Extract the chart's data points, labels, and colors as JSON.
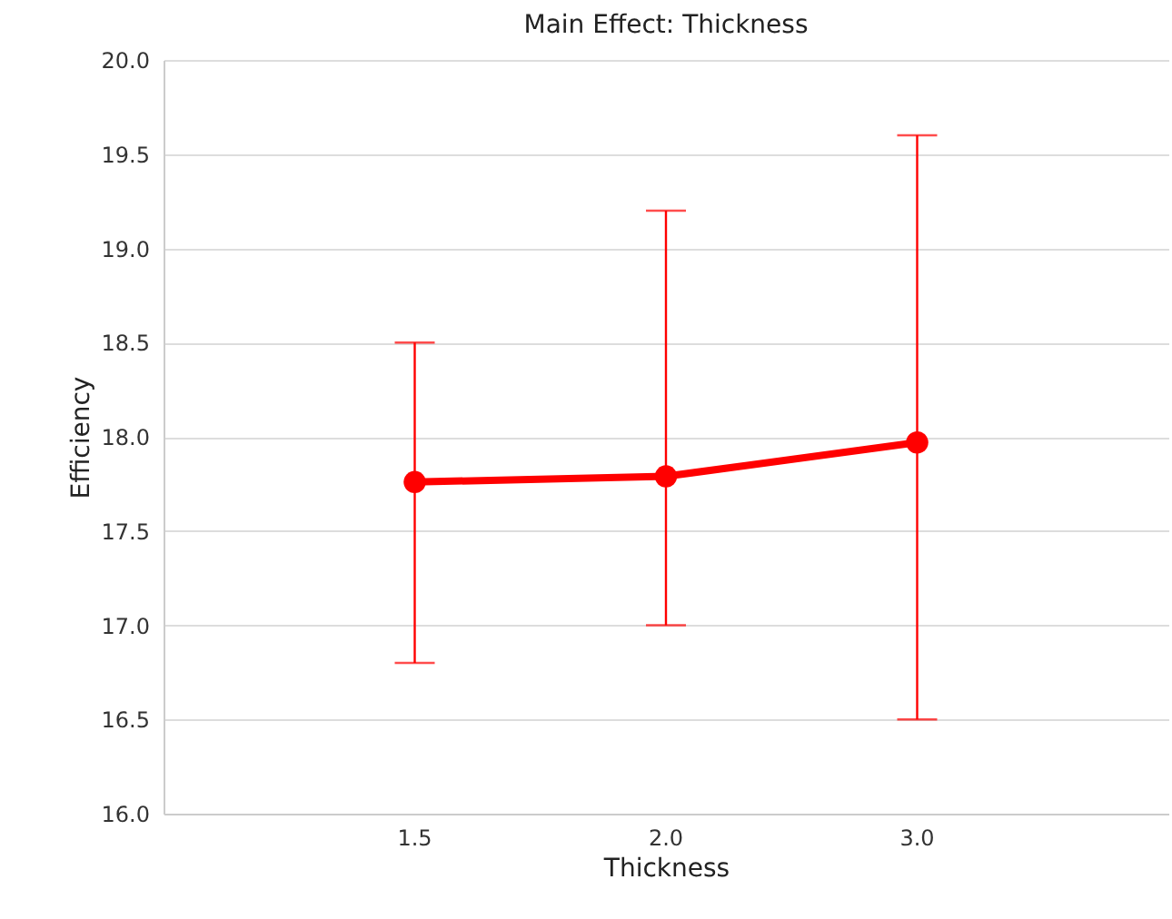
{
  "chart_data": {
    "type": "line",
    "title": "Main Effect: Thickness",
    "xlabel": "Thickness",
    "ylabel": "Efficiency",
    "categories": [
      "1.5",
      "2.0",
      "3.0"
    ],
    "series": [
      {
        "color": "#ff0000",
        "values": [
          17.76,
          17.79,
          17.97
        ],
        "errors": [
          [
            16.8,
            18.5
          ],
          [
            17.0,
            19.2
          ],
          [
            16.5,
            19.6
          ]
        ]
      }
    ],
    "ylim": [
      16.0,
      20.0
    ],
    "yticks": [
      {
        "value": 16,
        "label": "16.0"
      },
      {
        "value": 16.5,
        "label": "16.5"
      },
      {
        "value": 17,
        "label": "17.0"
      },
      {
        "value": 17.5,
        "label": "17.5"
      },
      {
        "value": 18,
        "label": "18.0"
      },
      {
        "value": 18.5,
        "label": "18.5"
      },
      {
        "value": 19,
        "label": "19.0"
      },
      {
        "value": 19.5,
        "label": "19.5"
      },
      {
        "value": 20,
        "label": "20.0"
      }
    ],
    "grid": "y",
    "marker": "circle",
    "line_style": "solid"
  }
}
